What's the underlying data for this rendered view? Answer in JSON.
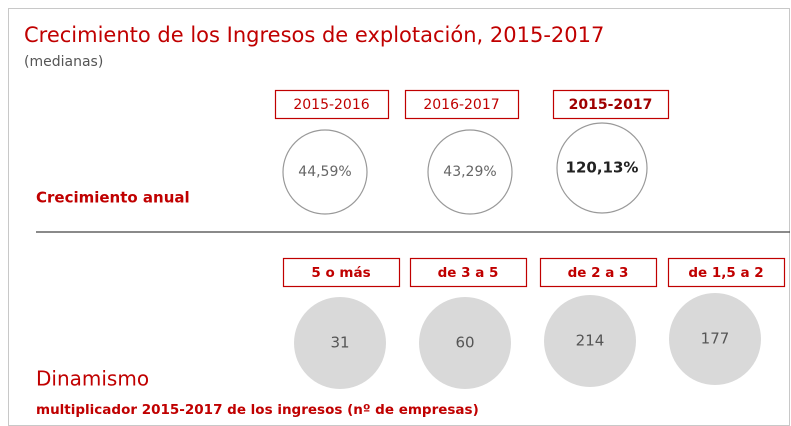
{
  "title": "Crecimiento de los Ingresos de explotación, 2015-2017",
  "subtitle": "(medianas)",
  "growth": {
    "label": "Crecimiento anual",
    "periods": [
      {
        "period": "2015-2016",
        "value": "44,59%"
      },
      {
        "period": "2016-2017",
        "value": "43,29%"
      },
      {
        "period": "2015-2017",
        "value": "120,13%"
      }
    ]
  },
  "dynamism": {
    "title": "Dinamismo",
    "note": "multiplicador 2015-2017 de los ingresos (nº de empresas)",
    "groups": [
      {
        "range": "5 o más",
        "count": 31
      },
      {
        "range": "de 3 a 5",
        "count": 60
      },
      {
        "range": "de 2 a 3",
        "count": 214
      },
      {
        "range": "de 1,5 a 2",
        "count": 177
      }
    ]
  }
}
